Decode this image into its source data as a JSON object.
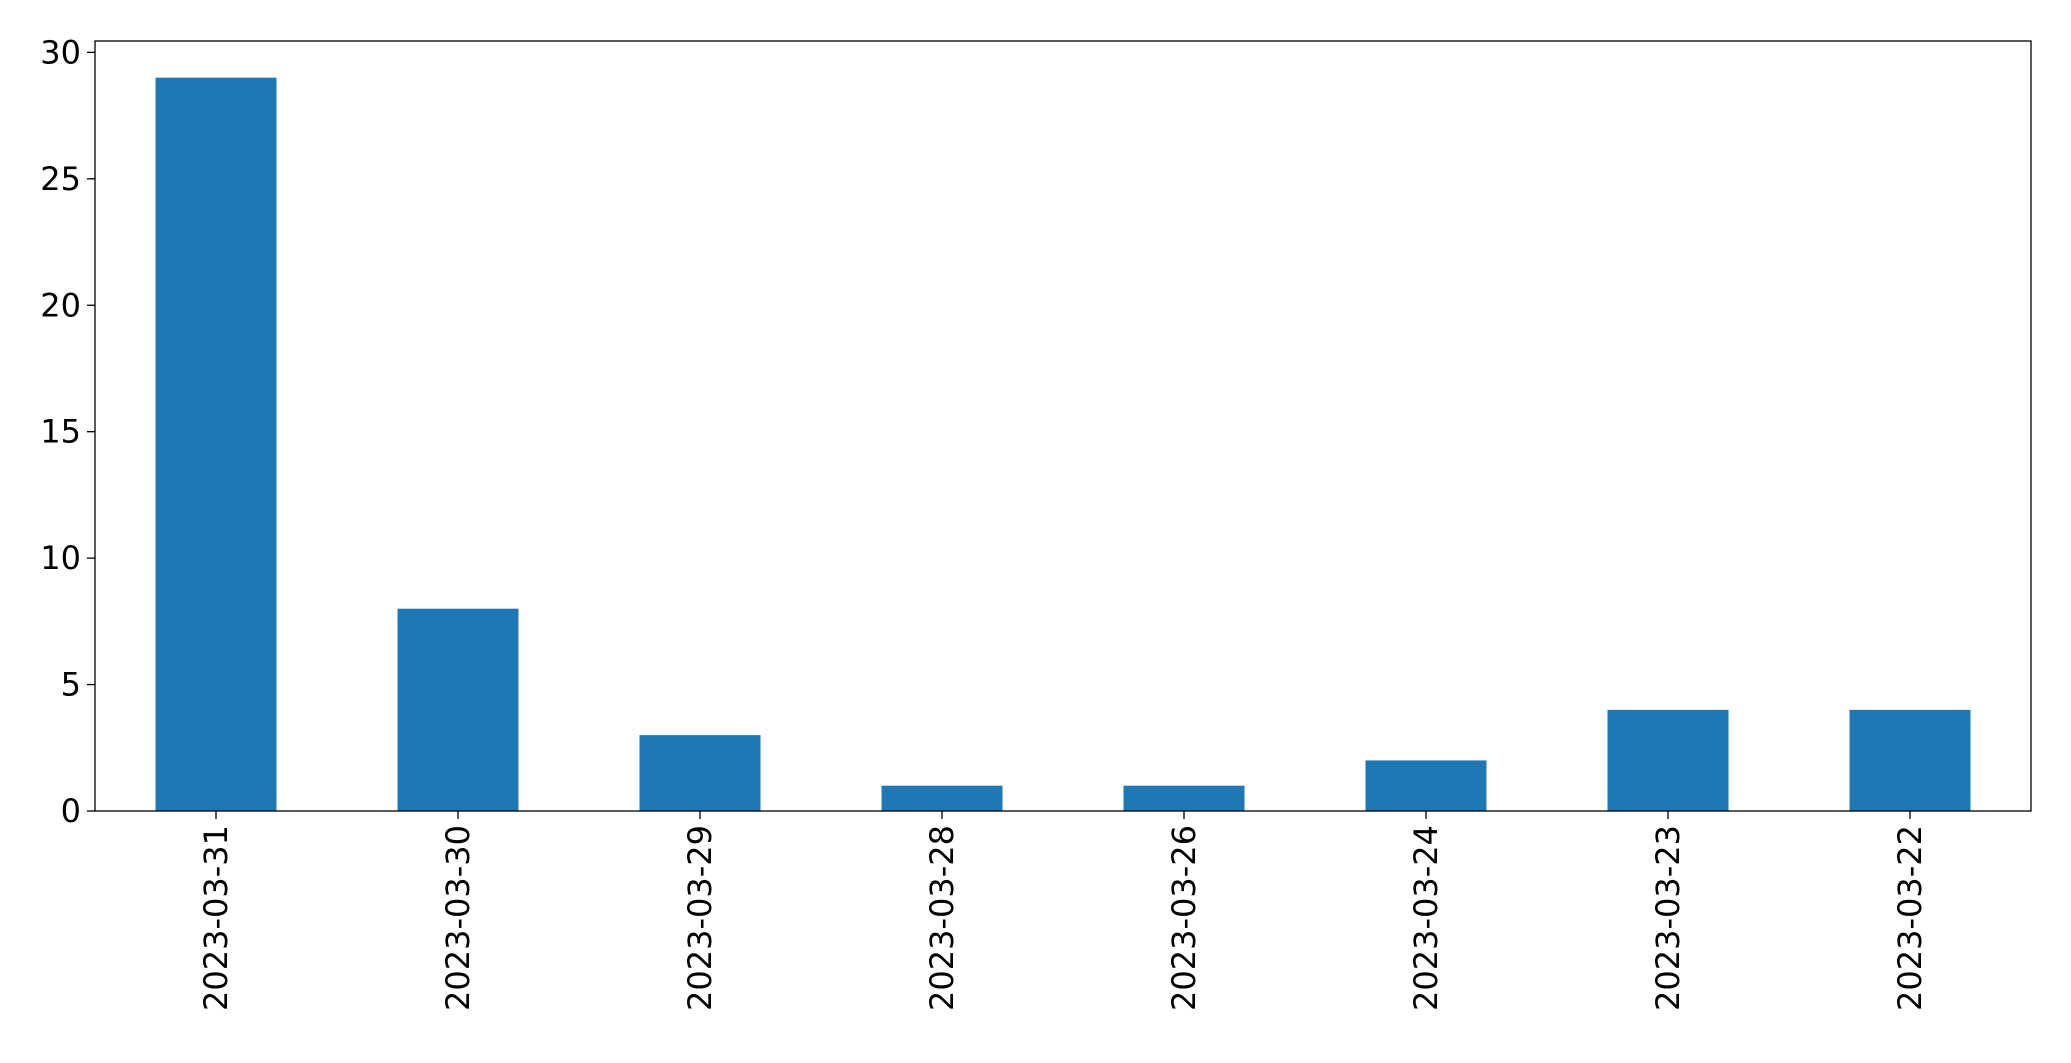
{
  "chart_data": {
    "type": "bar",
    "categories": [
      "2023-03-31",
      "2023-03-30",
      "2023-03-29",
      "2023-03-28",
      "2023-03-26",
      "2023-03-24",
      "2023-03-23",
      "2023-03-22"
    ],
    "values": [
      29,
      8,
      3,
      1,
      1,
      2,
      4,
      4
    ],
    "color": "#1f77b4",
    "ylim": [
      0,
      30.45
    ],
    "yticks": [
      0,
      5,
      10,
      15,
      20,
      25,
      30
    ],
    "grid": false
  }
}
